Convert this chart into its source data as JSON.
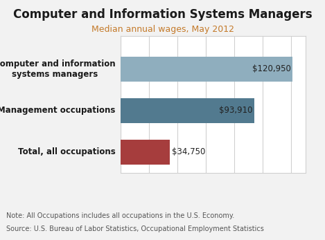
{
  "title": "Computer and Information Systems Managers",
  "subtitle": "Median annual wages, May 2012",
  "categories": [
    "Computer and information\nsystems managers",
    "Management occupations",
    "Total, all occupations"
  ],
  "values": [
    120950,
    93910,
    34750
  ],
  "labels": [
    "$120,950",
    "$93,910",
    "$34,750"
  ],
  "bar_colors": [
    "#8faebe",
    "#527a8f",
    "#a63d3d"
  ],
  "max_value": 130000,
  "note_line1": "Note: All Occupations includes all occupations in the U.S. Economy.",
  "note_line2": "Source: U.S. Bureau of Labor Statistics, Occupational Employment Statistics",
  "bg_color": "#f2f2f2",
  "plot_area_bg": "#ffffff",
  "title_fontsize": 12,
  "subtitle_fontsize": 9,
  "label_fontsize": 8.5,
  "note_fontsize": 7,
  "grid_color": "#d0d0d0",
  "subtitle_color": "#c47a2a",
  "note_color": "#555555"
}
